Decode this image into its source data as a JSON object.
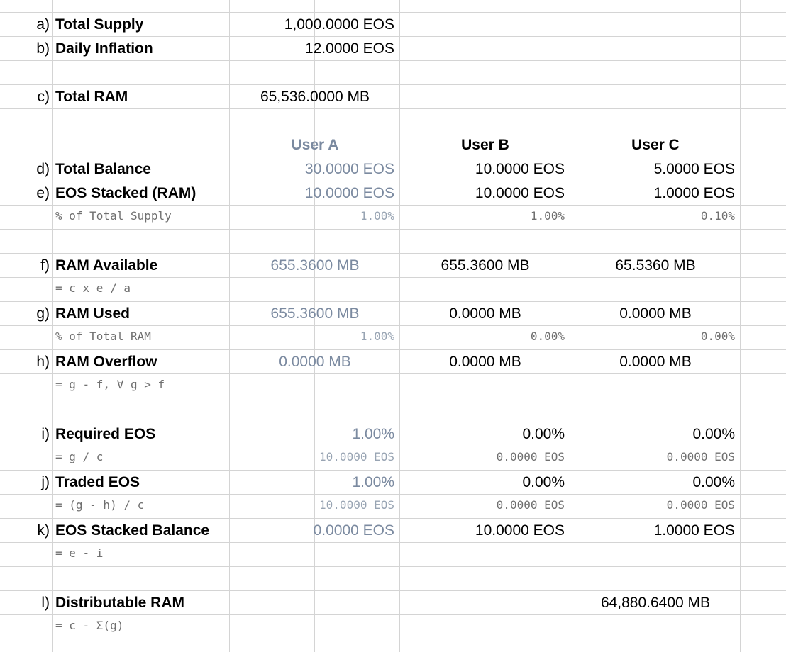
{
  "rows": {
    "a": {
      "letter": "a)",
      "label": "Total Supply",
      "value": "1,000.0000 EOS"
    },
    "b": {
      "letter": "b)",
      "label": "Daily Inflation",
      "value": "12.0000 EOS"
    },
    "c": {
      "letter": "c)",
      "label": "Total RAM",
      "value": "65,536.0000 MB"
    },
    "headers": {
      "user_a": "User A",
      "user_b": "User B",
      "user_c": "User C"
    },
    "d": {
      "letter": "d)",
      "label": "Total Balance",
      "user_a": "30.0000 EOS",
      "user_b": "10.0000 EOS",
      "user_c": "5.0000 EOS"
    },
    "e": {
      "letter": "e)",
      "label": "EOS Stacked (RAM)",
      "user_a": "10.0000 EOS",
      "user_b": "10.0000 EOS",
      "user_c": "1.0000 EOS",
      "sub": {
        "desc": "% of Total Supply",
        "user_a": "1.00%",
        "user_b": "1.00%",
        "user_c": "0.10%"
      }
    },
    "f": {
      "letter": "f)",
      "label": "RAM Available",
      "user_a": "655.3600 MB",
      "user_b": "655.3600 MB",
      "user_c": "65.5360 MB",
      "sub": {
        "desc": "= c x e / a"
      }
    },
    "g": {
      "letter": "g)",
      "label": "RAM Used",
      "user_a": "655.3600 MB",
      "user_b": "0.0000 MB",
      "user_c": "0.0000 MB",
      "sub": {
        "desc": "% of Total RAM",
        "user_a": "1.00%",
        "user_b": "0.00%",
        "user_c": "0.00%"
      }
    },
    "h": {
      "letter": "h)",
      "label": "RAM Overflow",
      "user_a": "0.0000 MB",
      "user_b": "0.0000 MB",
      "user_c": "0.0000 MB",
      "sub": {
        "desc": "= g - f, ∀ g > f"
      }
    },
    "i": {
      "letter": "i)",
      "label": "Required EOS",
      "user_a": "1.00%",
      "user_b": "0.00%",
      "user_c": "0.00%",
      "sub": {
        "desc": "= g / c",
        "user_a": "10.0000 EOS",
        "user_b": "0.0000 EOS",
        "user_c": "0.0000 EOS"
      }
    },
    "j": {
      "letter": "j)",
      "label": "Traded EOS",
      "user_a": "1.00%",
      "user_b": "0.00%",
      "user_c": "0.00%",
      "sub": {
        "desc": "= (g - h) / c",
        "user_a": "10.0000 EOS",
        "user_b": "0.0000 EOS",
        "user_c": "0.0000 EOS"
      }
    },
    "k": {
      "letter": "k)",
      "label": "EOS Stacked Balance",
      "user_a": "0.0000 EOS",
      "user_b": "10.0000 EOS",
      "user_c": "1.0000 EOS",
      "sub": {
        "desc": "= e - i"
      }
    },
    "l": {
      "letter": "l)",
      "label": "Distributable RAM",
      "value": "64,880.6400 MB",
      "sub": {
        "desc": "= c - Σ(g)"
      }
    }
  }
}
